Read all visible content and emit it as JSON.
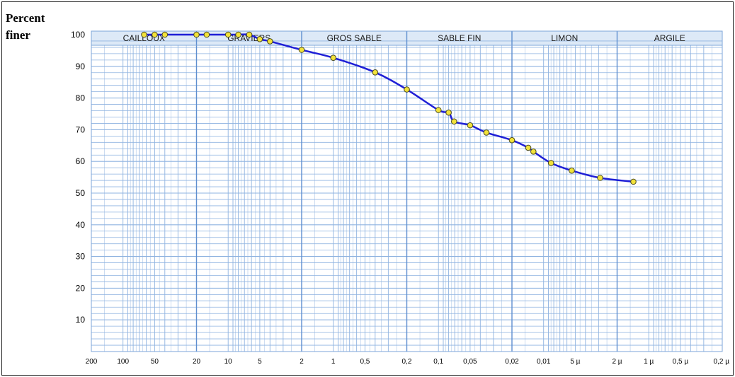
{
  "y_axis_label": "Percent finer",
  "chart_data": {
    "type": "line",
    "title": "",
    "xlabel": "",
    "ylabel": "Percent finer",
    "x_scale": "log",
    "x_direction": "decreasing",
    "x_unit": "mm",
    "xlim": [
      200,
      0.0002
    ],
    "ylim": [
      0,
      100
    ],
    "grid": true,
    "y_ticks": [
      10,
      20,
      30,
      40,
      50,
      60,
      70,
      80,
      90,
      100
    ],
    "x_ticks": [
      {
        "value": 200,
        "label": "200"
      },
      {
        "value": 100,
        "label": "100"
      },
      {
        "value": 50,
        "label": "50"
      },
      {
        "value": 20,
        "label": "20"
      },
      {
        "value": 10,
        "label": "10"
      },
      {
        "value": 5,
        "label": "5"
      },
      {
        "value": 2,
        "label": "2"
      },
      {
        "value": 1,
        "label": "1"
      },
      {
        "value": 0.5,
        "label": "0,5"
      },
      {
        "value": 0.2,
        "label": "0,2"
      },
      {
        "value": 0.1,
        "label": "0,1"
      },
      {
        "value": 0.05,
        "label": "0,05"
      },
      {
        "value": 0.02,
        "label": "0,02"
      },
      {
        "value": 0.01,
        "label": "0,01"
      },
      {
        "value": 0.005,
        "label": "5 µ"
      },
      {
        "value": 0.002,
        "label": "2 µ"
      },
      {
        "value": 0.001,
        "label": "1 µ"
      },
      {
        "value": 0.0005,
        "label": "0,5 µ"
      },
      {
        "value": 0.0002,
        "label": "0,2 µ"
      }
    ],
    "bands": [
      {
        "label": "CAILLOUX",
        "from": 200,
        "to": 20
      },
      {
        "label": "GRAVIERS",
        "from": 20,
        "to": 2
      },
      {
        "label": "GROS SABLE",
        "from": 2,
        "to": 0.2
      },
      {
        "label": "SABLE FIN",
        "from": 0.2,
        "to": 0.02
      },
      {
        "label": "LIMON",
        "from": 0.02,
        "to": 0.002
      },
      {
        "label": "ARGILE",
        "from": 0.002,
        "to": 0.0002
      }
    ],
    "series": [
      {
        "color": "#1f1fd6",
        "marker_color": "#f2e23a",
        "x": [
          63,
          50,
          40,
          20,
          16,
          10,
          8,
          6.3,
          5,
          4,
          2,
          1,
          0.4,
          0.2,
          0.1,
          0.08,
          0.071,
          0.05,
          0.035,
          0.02,
          0.014,
          0.0125,
          0.0085,
          0.0054,
          0.0029,
          0.0014
        ],
        "y": [
          100,
          100,
          100,
          100,
          100,
          100,
          100,
          100,
          98.6,
          97.9,
          95.2,
          92.7,
          88.1,
          82.7,
          76.2,
          75.4,
          72.6,
          71.4,
          69.1,
          66.7,
          64.3,
          63.1,
          59.5,
          57.1,
          54.8,
          53.6
        ]
      }
    ]
  }
}
